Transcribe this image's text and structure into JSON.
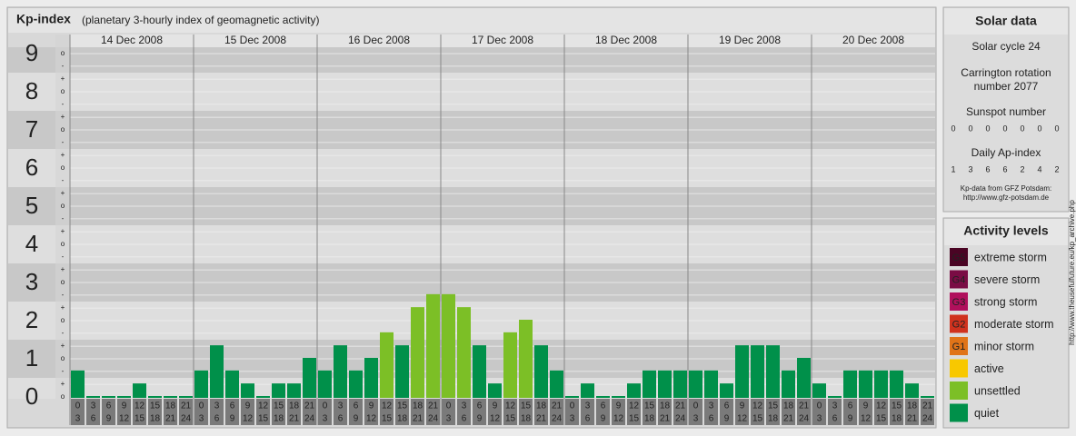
{
  "header": {
    "title": "Kp-index",
    "subtitle": "(planetary 3-hourly index of geomagnetic activity)"
  },
  "chart_data": {
    "type": "bar",
    "ylim": [
      0,
      9
    ],
    "yticks": [
      0,
      1,
      2,
      3,
      4,
      5,
      6,
      7,
      8,
      9
    ],
    "minor_yticks": [
      {
        "value": 0,
        "label": "o"
      },
      {
        "value": 0.33,
        "label": "+"
      },
      {
        "value": 0.67,
        "label": "-"
      },
      {
        "value": 1,
        "label": "o"
      },
      {
        "value": 1.33,
        "label": "+"
      },
      {
        "value": 1.67,
        "label": "-"
      },
      {
        "value": 2,
        "label": "o"
      },
      {
        "value": 2.33,
        "label": "+"
      },
      {
        "value": 2.67,
        "label": "-"
      },
      {
        "value": 3,
        "label": "o"
      },
      {
        "value": 3.33,
        "label": "+"
      },
      {
        "value": 3.67,
        "label": "-"
      },
      {
        "value": 4,
        "label": "o"
      },
      {
        "value": 4.33,
        "label": "+"
      },
      {
        "value": 4.67,
        "label": "-"
      },
      {
        "value": 5,
        "label": "o"
      },
      {
        "value": 5.33,
        "label": "+"
      },
      {
        "value": 5.67,
        "label": "-"
      },
      {
        "value": 6,
        "label": "o"
      },
      {
        "value": 6.33,
        "label": "+"
      },
      {
        "value": 6.67,
        "label": "-"
      },
      {
        "value": 7,
        "label": "o"
      },
      {
        "value": 7.33,
        "label": "+"
      },
      {
        "value": 7.67,
        "label": "-"
      },
      {
        "value": 8,
        "label": "o"
      },
      {
        "value": 8.33,
        "label": "+"
      },
      {
        "value": 8.67,
        "label": "-"
      },
      {
        "value": 9,
        "label": "o"
      }
    ],
    "intervals": [
      [
        "0",
        "3"
      ],
      [
        "3",
        "6"
      ],
      [
        "6",
        "9"
      ],
      [
        "9",
        "12"
      ],
      [
        "12",
        "15"
      ],
      [
        "15",
        "18"
      ],
      [
        "18",
        "21"
      ],
      [
        "21",
        "24"
      ]
    ],
    "grid": true,
    "series": [
      {
        "name": "14 Dec 2008",
        "values": [
          0.67,
          0,
          0,
          0,
          0.33,
          0,
          0,
          0
        ],
        "colors": [
          "#00904a",
          "#00904a",
          "#00904a",
          "#00904a",
          "#00904a",
          "#00904a",
          "#00904a",
          "#00904a"
        ]
      },
      {
        "name": "15 Dec 2008",
        "values": [
          0.67,
          1.33,
          0.67,
          0.33,
          0,
          0.33,
          0.33,
          1
        ],
        "colors": [
          "#00904a",
          "#00904a",
          "#00904a",
          "#00904a",
          "#00904a",
          "#00904a",
          "#00904a",
          "#00904a"
        ]
      },
      {
        "name": "16 Dec 2008",
        "values": [
          0.67,
          1.33,
          0.67,
          1,
          1.67,
          1.33,
          2.33,
          2.67
        ],
        "colors": [
          "#00904a",
          "#00904a",
          "#00904a",
          "#00904a",
          "#7cbf26",
          "#00904a",
          "#7cbf26",
          "#7cbf26"
        ]
      },
      {
        "name": "17 Dec 2008",
        "values": [
          2.67,
          2.33,
          1.33,
          0.33,
          1.67,
          2,
          1.33,
          0.67
        ],
        "colors": [
          "#7cbf26",
          "#7cbf26",
          "#00904a",
          "#00904a",
          "#7cbf26",
          "#7cbf26",
          "#00904a",
          "#00904a"
        ]
      },
      {
        "name": "18 Dec 2008",
        "values": [
          0,
          0.33,
          0,
          0,
          0.33,
          0.67,
          0.67,
          0.67
        ],
        "colors": [
          "#00904a",
          "#00904a",
          "#00904a",
          "#00904a",
          "#00904a",
          "#00904a",
          "#00904a",
          "#00904a"
        ]
      },
      {
        "name": "19 Dec 2008",
        "values": [
          0.67,
          0.67,
          0.33,
          1.33,
          1.33,
          1.33,
          0.67,
          1
        ],
        "colors": [
          "#00904a",
          "#00904a",
          "#00904a",
          "#00904a",
          "#00904a",
          "#00904a",
          "#00904a",
          "#00904a"
        ]
      },
      {
        "name": "20 Dec 2008",
        "values": [
          0.33,
          0,
          0.67,
          0.67,
          0.67,
          0.67,
          0.33,
          0
        ],
        "colors": [
          "#00904a",
          "#00904a",
          "#00904a",
          "#00904a",
          "#00904a",
          "#00904a",
          "#00904a",
          "#00904a"
        ]
      }
    ]
  },
  "solar_data": {
    "title": "Solar data",
    "cycle": "Solar cycle 24",
    "carrington": [
      "Carrington rotation",
      "number 2077"
    ],
    "sunspot_label": "Sunspot number",
    "sunspot_numbers": [
      0,
      0,
      0,
      0,
      0,
      0,
      0
    ],
    "ap_label": "Daily Ap-index",
    "ap_index": [
      1,
      3,
      6,
      6,
      2,
      4,
      2
    ],
    "source": "Kp-data from GFZ Potsdam:",
    "source_url": "http://www.gfz-potsdam.de"
  },
  "activity_levels": {
    "title": "Activity levels",
    "items": [
      {
        "code": "G5",
        "label": "extreme storm",
        "color": "#4a0424"
      },
      {
        "code": "G4",
        "label": "severe storm",
        "color": "#7a0c44"
      },
      {
        "code": "G3",
        "label": "strong storm",
        "color": "#b0105c"
      },
      {
        "code": "G2",
        "label": "moderate storm",
        "color": "#d0321e"
      },
      {
        "code": "G1",
        "label": "minor storm",
        "color": "#e07418"
      },
      {
        "label": "active",
        "color": "#f8c800"
      },
      {
        "label": "unsettled",
        "color": "#7cbf26"
      },
      {
        "label": "quiet",
        "color": "#00904a"
      }
    ]
  },
  "watermark": "http://www.theusefulfuture.eu/kp_archive.php"
}
